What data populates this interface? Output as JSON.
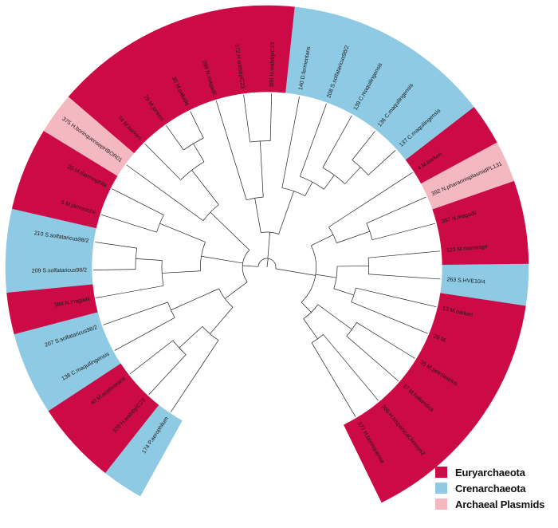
{
  "chart_data": {
    "type": "circular-phylogenetic-tree",
    "legend": {
      "placement": "bottom-right",
      "entries": [
        {
          "group": "eury",
          "label": "Euryarchaeota",
          "color": "#cc0a45"
        },
        {
          "group": "cren",
          "label": "Crenarchaeota",
          "color": "#8ecae3"
        },
        {
          "group": "plasmid",
          "label": "Archaeal Plasmids",
          "color": "#f4b8c1"
        }
      ]
    },
    "leaves": [
      {
        "label": "174 P.aerophilum",
        "group": "cren"
      },
      {
        "label": "370 H.walsbyiC23",
        "group": "eury"
      },
      {
        "label": "40 M.acetivorans",
        "group": "eury"
      },
      {
        "label": "138 C.maquilingensis",
        "group": "cren"
      },
      {
        "label": "207 S.solfataricus98/2",
        "group": "cren"
      },
      {
        "label": "388 N.magadii",
        "group": "eury"
      },
      {
        "label": "209 S.solfataricus98/2",
        "group": "cren"
      },
      {
        "label": "210 S.solfataricus98/2",
        "group": "cren"
      },
      {
        "label": "5 M.jannaschii",
        "group": "eury"
      },
      {
        "label": "20 M.thermophila",
        "group": "eury"
      },
      {
        "label": "375 H.borinquensepHBOR01",
        "group": "plasmid"
      },
      {
        "label": "74 M.barkeri",
        "group": "eury"
      },
      {
        "label": "26 M.jonkeri",
        "group": "eury"
      },
      {
        "label": "30 M.paludis",
        "group": "eury"
      },
      {
        "label": "398 N.magadii",
        "group": "eury"
      },
      {
        "label": "372 H.walsbyiC23",
        "group": "eury"
      },
      {
        "label": "380 H.walsbyiC23",
        "group": "eury"
      },
      {
        "label": "140 D.fermentans",
        "group": "cren"
      },
      {
        "label": "208 S.solfataricus98/2",
        "group": "cren"
      },
      {
        "label": "139 C.maquilingensis",
        "group": "cren"
      },
      {
        "label": "136 C.maquilingensis",
        "group": "cren"
      },
      {
        "label": "137 C.maquilingensis",
        "group": "cren"
      },
      {
        "label": "4 M.barkeri",
        "group": "eury"
      },
      {
        "label": "392 N.pharaonisplasmidPL131",
        "group": "plasmid"
      },
      {
        "label": "387 N.magadii",
        "group": "eury"
      },
      {
        "label": "123 M.marisnigri",
        "group": "eury"
      },
      {
        "label": "263 S.HVE10/4",
        "group": "cren"
      },
      {
        "label": "13 M.barkeri",
        "group": "eury"
      },
      {
        "label": "29 M.",
        "group": "eury"
      },
      {
        "label": "35 M.petrolearius",
        "group": "eury"
      },
      {
        "label": "37 M.hollandica",
        "group": "eury"
      },
      {
        "label": "365 H.hispanicaChrmsm2",
        "group": "eury"
      },
      {
        "label": "377 H.borinquense",
        "group": "eury"
      }
    ]
  }
}
